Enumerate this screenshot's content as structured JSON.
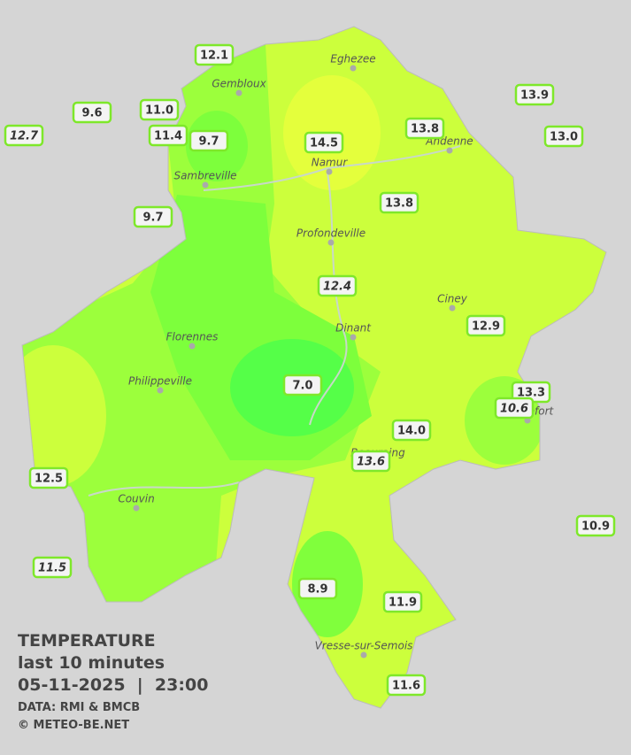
{
  "towns": [
    "Eghezee",
    "Gembloux",
    "Andenne",
    "Namur",
    "Sambreville",
    "Profondeville",
    "Ciney",
    "Dinant",
    "Florennes",
    "Philippeville",
    "Rochefort",
    "Beauraing",
    "Couvin",
    "Vresse-sur-Semois"
  ],
  "stations": [
    {
      "value": "12.1"
    },
    {
      "value": "9.6"
    },
    {
      "value": "11.0"
    },
    {
      "value": "12.7",
      "italic": true
    },
    {
      "value": "11.4"
    },
    {
      "value": "9.7"
    },
    {
      "value": "14.5"
    },
    {
      "value": "13.8"
    },
    {
      "value": "13.9"
    },
    {
      "value": "13.0"
    },
    {
      "value": "9.7"
    },
    {
      "value": "13.8"
    },
    {
      "value": "12.4",
      "italic": true
    },
    {
      "value": "12.9"
    },
    {
      "value": "7.0"
    },
    {
      "value": "13.3"
    },
    {
      "value": "10.6",
      "italic": true
    },
    {
      "value": "14.0"
    },
    {
      "value": "13.6",
      "italic": true
    },
    {
      "value": "12.5"
    },
    {
      "value": "10.9"
    },
    {
      "value": "11.5",
      "italic": true
    },
    {
      "value": "8.9"
    },
    {
      "value": "11.9"
    },
    {
      "value": "11.6"
    }
  ],
  "legend": {
    "title": "TEMPERATURE",
    "subtitle": "last 10 minutes",
    "datetime": "05-11-2025  |  23:00",
    "source": "DATA: RMI & BMCB",
    "credit": "© METEO-BE.NET"
  }
}
